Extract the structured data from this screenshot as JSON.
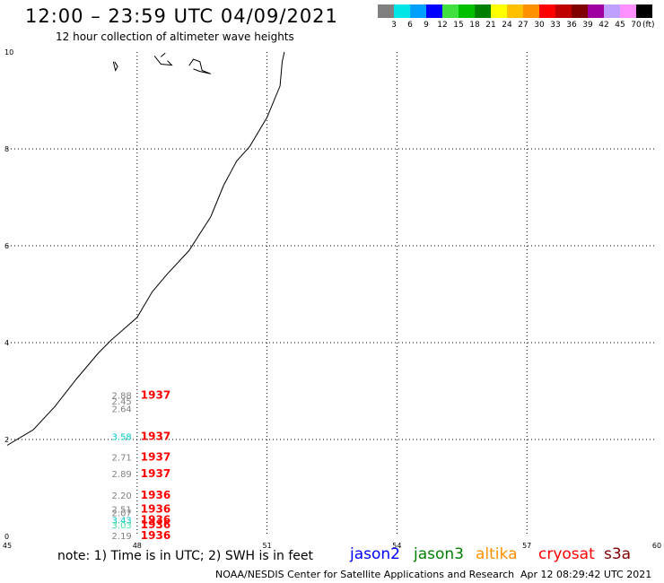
{
  "header": {
    "title": "12:00 – 23:59 UTC 04/09/2021",
    "subtitle": "12 hour collection of altimeter wave heights"
  },
  "legend": {
    "colors": [
      "#808080",
      "#00e5e5",
      "#00a0ff",
      "#0000ff",
      "#40e040",
      "#00c000",
      "#008000",
      "#ffff00",
      "#ffc000",
      "#ff9000",
      "#ff0000",
      "#c00000",
      "#800000",
      "#a000a0",
      "#c0a0ff",
      "#ff90ff",
      "#000000"
    ],
    "labels": [
      "3",
      "6",
      "9",
      "12",
      "15",
      "18",
      "21",
      "24",
      "27",
      "30",
      "33",
      "36",
      "39",
      "42",
      "45",
      "70"
    ],
    "unit": "(ft)"
  },
  "axes": {
    "x_ticks": [
      "45",
      "48",
      "51",
      "54",
      "57",
      "60"
    ],
    "y_ticks": [
      "0",
      "2",
      "4",
      "6",
      "8",
      "10"
    ]
  },
  "observations": [
    {
      "lon": 48.0,
      "lat": 2.9,
      "swh": "2.88",
      "swh_color": "#808080",
      "time": "1937",
      "time_color": "#ff0000"
    },
    {
      "lon": 48.0,
      "lat": 2.78,
      "swh": "2.45",
      "swh_color": "#808080",
      "time": "",
      "time_color": "#ff0000"
    },
    {
      "lon": 48.0,
      "lat": 2.62,
      "swh": "2.64",
      "swh_color": "#808080",
      "time": "",
      "time_color": "#ff0000"
    },
    {
      "lon": 48.0,
      "lat": 2.05,
      "swh": "3.58",
      "swh_color": "#00c8c8",
      "time": "1937",
      "time_color": "#ff0000"
    },
    {
      "lon": 48.0,
      "lat": 1.62,
      "swh": "2.71",
      "swh_color": "#808080",
      "time": "1937",
      "time_color": "#ff0000"
    },
    {
      "lon": 48.0,
      "lat": 1.28,
      "swh": "2.89",
      "swh_color": "#808080",
      "time": "1937",
      "time_color": "#ff0000"
    },
    {
      "lon": 48.0,
      "lat": 0.83,
      "swh": "2.20",
      "swh_color": "#808080",
      "time": "1936",
      "time_color": "#ff0000"
    },
    {
      "lon": 48.0,
      "lat": 0.55,
      "swh": "2.51",
      "swh_color": "#808080",
      "time": "1936",
      "time_color": "#ff0000"
    },
    {
      "lon": 48.0,
      "lat": 0.47,
      "swh": "2.07",
      "swh_color": "#808080",
      "time": "",
      "time_color": "#ff0000"
    },
    {
      "lon": 48.0,
      "lat": 0.32,
      "swh": "3.43",
      "swh_color": "#00c8c8",
      "time": "1936",
      "time_color": "#ff0000"
    },
    {
      "lon": 48.0,
      "lat": 0.22,
      "swh": "3.03",
      "swh_color": "#40e0a0",
      "time": "1936",
      "time_color": "#ff0000"
    },
    {
      "lon": 48.0,
      "lat": 0.0,
      "swh": "2.19",
      "swh_color": "#808080",
      "time": "1936",
      "time_color": "#ff0000"
    }
  ],
  "note": "note:  1) Time is in UTC;  2) SWH is in feet",
  "satellites": [
    {
      "name": "jason2",
      "color": "#0000ff"
    },
    {
      "name": "jason3",
      "color": "#008000"
    },
    {
      "name": "altika",
      "color": "#ff9000"
    },
    {
      "name": "cryosat",
      "color": "#ff0000"
    },
    {
      "name": "s3a",
      "color": "#800000"
    }
  ],
  "footer": {
    "credit": "NOAA/NESDIS Center for Satellite Applications and Research",
    "timestamp": "Apr 12 08:29:42 UTC 2021"
  }
}
